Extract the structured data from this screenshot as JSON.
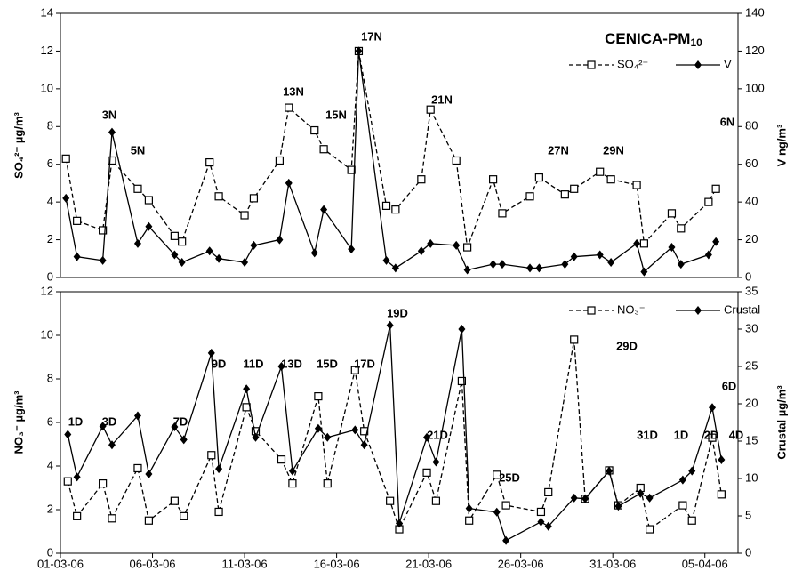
{
  "chart_data": [
    {
      "type": "line",
      "title": "CENICA-PM",
      "title_subscript": "10",
      "y_label": "SO₄²⁻ µg/m³",
      "y2_label": "V ng/m³",
      "legend": "upper right",
      "x": [
        0.3,
        0.9,
        2.3,
        2.8,
        4.2,
        4.8,
        6.2,
        6.6,
        8.1,
        8.6,
        10.0,
        10.5,
        11.9,
        12.4,
        13.8,
        14.3,
        15.8,
        16.2,
        17.7,
        18.2,
        19.6,
        20.1,
        21.5,
        22.1,
        23.5,
        24.0,
        25.5,
        26.0,
        27.4,
        27.9,
        29.3,
        29.9,
        31.3,
        31.7,
        33.2,
        33.7,
        35.2,
        35.6
      ],
      "xlim": [
        0,
        36.8
      ],
      "ylim": [
        0,
        14
      ],
      "yticks": [
        0,
        2,
        4,
        6,
        8,
        10,
        12,
        14
      ],
      "y2lim": [
        0,
        140
      ],
      "y2ticks": [
        0,
        20,
        40,
        60,
        80,
        100,
        120,
        140
      ],
      "series": [
        {
          "name": "SO₄²⁻",
          "color": "#000000",
          "style": "dashed",
          "marker": "square",
          "values": [
            6.3,
            3.0,
            2.5,
            6.2,
            4.7,
            4.1,
            2.2,
            1.9,
            6.1,
            4.3,
            3.3,
            4.2,
            6.2,
            9.0,
            7.8,
            6.8,
            5.7,
            12.0,
            3.8,
            3.6,
            5.2,
            8.9,
            6.2,
            1.6,
            5.2,
            3.4,
            4.3,
            5.3,
            4.4,
            4.7,
            5.6,
            5.2,
            4.9,
            1.8,
            3.4,
            2.6,
            4.0,
            4.7
          ]
        },
        {
          "name": "V",
          "color": "#000000",
          "style": "solid",
          "marker": "diamond",
          "axis": "y2",
          "values": [
            42,
            11,
            9,
            77,
            18,
            27,
            12,
            8,
            14,
            10,
            8,
            17,
            20,
            50,
            13,
            36,
            15,
            120,
            9,
            5,
            14,
            18,
            17,
            4,
            7,
            7,
            5,
            5,
            7,
            11,
            12,
            8,
            18,
            3,
            16,
            7,
            12,
            19
          ]
        }
      ],
      "annotations": [
        "3N",
        "5N",
        "13N",
        "15N",
        "17N",
        "21N",
        "27N",
        "29N",
        "6N"
      ]
    },
    {
      "type": "line",
      "y_label": "NO₃⁻ µg/m³",
      "y2_label": "Crustal µg/m³",
      "legend": "upper right",
      "x": [
        0.4,
        0.9,
        2.3,
        2.8,
        4.2,
        4.8,
        6.2,
        6.7,
        8.2,
        8.6,
        10.1,
        10.6,
        12.0,
        12.6,
        14.0,
        14.5,
        16.0,
        16.5,
        17.9,
        18.4,
        19.9,
        20.4,
        21.8,
        22.2,
        23.7,
        24.2,
        26.1,
        26.5,
        27.9,
        28.5,
        29.8,
        30.3,
        31.5,
        32.0,
        33.8,
        34.3,
        35.4,
        35.9
      ],
      "xlim": [
        0,
        36.8
      ],
      "ylim": [
        0,
        12
      ],
      "yticks": [
        0,
        2,
        4,
        6,
        8,
        10,
        12
      ],
      "y2lim": [
        0,
        35
      ],
      "y2ticks": [
        0,
        5,
        10,
        15,
        20,
        25,
        30,
        35
      ],
      "xticks": [
        {
          "value": 0,
          "label": "01-03-06"
        },
        {
          "value": 5,
          "label": "06-03-06"
        },
        {
          "value": 10,
          "label": "11-03-06"
        },
        {
          "value": 15,
          "label": "16-03-06"
        },
        {
          "value": 20,
          "label": "21-03-06"
        },
        {
          "value": 25,
          "label": "26-03-06"
        },
        {
          "value": 30,
          "label": "31-03-06"
        },
        {
          "value": 35,
          "label": "05-04-06"
        }
      ],
      "series": [
        {
          "name": "NO₃⁻",
          "color": "#000000",
          "style": "dashed",
          "marker": "square",
          "values": [
            3.3,
            1.7,
            3.2,
            1.6,
            3.9,
            1.5,
            2.4,
            1.7,
            4.5,
            1.9,
            6.7,
            5.6,
            4.3,
            3.2,
            7.2,
            3.2,
            8.4,
            5.6,
            2.4,
            1.1,
            3.7,
            2.4,
            7.9,
            1.5,
            3.6,
            2.2,
            1.9,
            2.8,
            9.8,
            2.5,
            3.8,
            2.2,
            3.0,
            1.1,
            2.2,
            1.5,
            5.3,
            2.7
          ]
        },
        {
          "name": "Crustal",
          "color": "#000000",
          "style": "solid",
          "marker": "diamond",
          "axis": "y2",
          "values": [
            15.9,
            10.2,
            17,
            14.5,
            18.4,
            10.6,
            16.9,
            15.2,
            26.8,
            11.3,
            22,
            15.5,
            25,
            11,
            16.7,
            15.5,
            16.5,
            14.5,
            30.5,
            4,
            15.5,
            12.2,
            30,
            6,
            5.5,
            1.7,
            4.2,
            3.6,
            7.4,
            7.3,
            11,
            6.3,
            8,
            7.4,
            9.8,
            11,
            19.5,
            12.5
          ]
        }
      ],
      "annotations": [
        "1D",
        "3D",
        "7D",
        "9D",
        "11D",
        "13D",
        "15D",
        "17D",
        "19D",
        "21D",
        "25D",
        "29D",
        "31D",
        "1D",
        "2D",
        "4D",
        "6D"
      ]
    }
  ]
}
